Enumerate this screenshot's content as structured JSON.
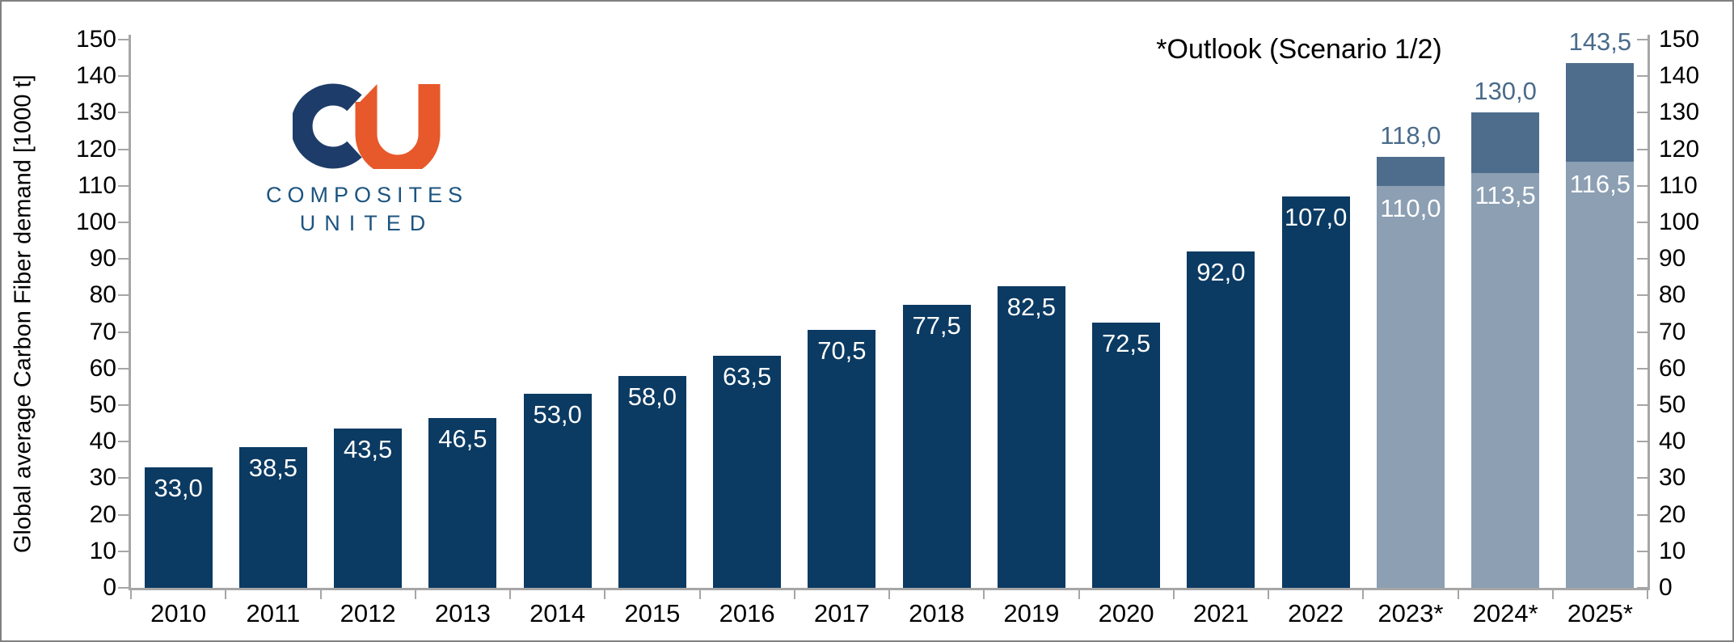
{
  "annotation": {
    "text": "*Outlook (Scenario 1/2)"
  },
  "logo": {
    "monogram": "CU",
    "line1": "COMPOSITES",
    "line2": "UNITED",
    "navy": "#1E3C69",
    "orange": "#E7582B",
    "text_color": "#1C5480"
  },
  "chart_data": {
    "type": "bar",
    "title": "",
    "ylabel": "Global average Carbon Fiber demand [1000 t]",
    "ylim": [
      0,
      150
    ],
    "ytick_step": 10,
    "yticks": [
      0,
      10,
      20,
      30,
      40,
      50,
      60,
      70,
      80,
      90,
      100,
      110,
      120,
      130,
      140,
      150
    ],
    "grid": false,
    "legend_position": "none",
    "secondary_y_axis": true,
    "categories": [
      "2010",
      "2011",
      "2012",
      "2013",
      "2014",
      "2015",
      "2016",
      "2017",
      "2018",
      "2019",
      "2020",
      "2021",
      "2022",
      "2023*",
      "2024*",
      "2025*"
    ],
    "bars": [
      {
        "category": "2010",
        "type": "actual",
        "value": 33.0,
        "label": "33,0"
      },
      {
        "category": "2011",
        "type": "actual",
        "value": 38.5,
        "label": "38,5"
      },
      {
        "category": "2012",
        "type": "actual",
        "value": 43.5,
        "label": "43,5"
      },
      {
        "category": "2013",
        "type": "actual",
        "value": 46.5,
        "label": "46,5"
      },
      {
        "category": "2014",
        "type": "actual",
        "value": 53.0,
        "label": "53,0"
      },
      {
        "category": "2015",
        "type": "actual",
        "value": 58.0,
        "label": "58,0"
      },
      {
        "category": "2016",
        "type": "actual",
        "value": 63.5,
        "label": "63,5"
      },
      {
        "category": "2017",
        "type": "actual",
        "value": 70.5,
        "label": "70,5"
      },
      {
        "category": "2018",
        "type": "actual",
        "value": 77.5,
        "label": "77,5"
      },
      {
        "category": "2019",
        "type": "actual",
        "value": 82.5,
        "label": "82,5"
      },
      {
        "category": "2020",
        "type": "actual",
        "value": 72.5,
        "label": "72,5"
      },
      {
        "category": "2021",
        "type": "actual",
        "value": 92.0,
        "label": "92,0"
      },
      {
        "category": "2022",
        "type": "actual",
        "value": 107.0,
        "label": "107,0"
      },
      {
        "category": "2023*",
        "type": "outlook",
        "base": 110.0,
        "base_label": "110,0",
        "total": 118.0,
        "total_label": "118,0"
      },
      {
        "category": "2024*",
        "type": "outlook",
        "base": 113.5,
        "base_label": "113,5",
        "total": 130.0,
        "total_label": "130,0"
      },
      {
        "category": "2025*",
        "type": "outlook",
        "base": 116.5,
        "base_label": "116,5",
        "total": 143.5,
        "total_label": "143,5"
      }
    ],
    "colors": {
      "actual": "#0B3A62",
      "outlook_base": "#8C9FB3",
      "outlook_top": "#4E6D8C",
      "outlook_total_label": "#4A6B8A",
      "bar_label": "#FFFFFF",
      "axis": "#A6A6A6",
      "tick_label": "#000000"
    }
  }
}
